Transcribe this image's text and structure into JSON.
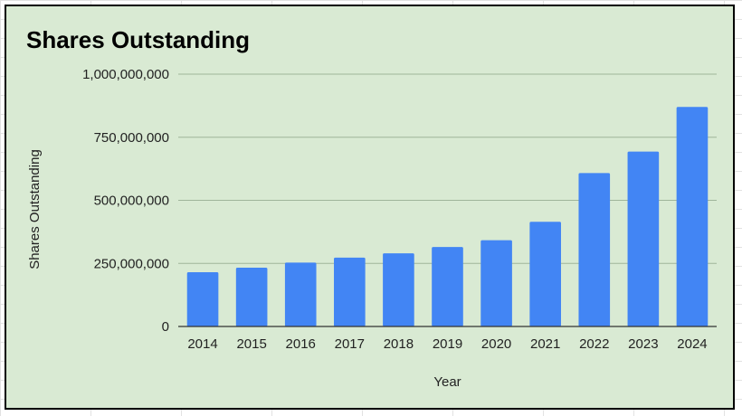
{
  "chart_data": {
    "type": "bar",
    "title": "Shares Outstanding",
    "xlabel": "Year",
    "ylabel": "Shares Outstanding",
    "categories": [
      "2014",
      "2015",
      "2016",
      "2017",
      "2018",
      "2019",
      "2020",
      "2021",
      "2022",
      "2023",
      "2024"
    ],
    "values": [
      215000000,
      233000000,
      253000000,
      273000000,
      290000000,
      315000000,
      342000000,
      415000000,
      608000000,
      693000000,
      870000000
    ],
    "ylim": [
      0,
      1000000000
    ],
    "yticks": [
      {
        "value": 0,
        "label": "0"
      },
      {
        "value": 250000000,
        "label": "250,000,000"
      },
      {
        "value": 500000000,
        "label": "500,000,000"
      },
      {
        "value": 750000000,
        "label": "750,000,000"
      },
      {
        "value": 1000000000,
        "label": "1,000,000,000"
      }
    ],
    "grid": true,
    "legend": "none",
    "colors": {
      "bar": "#4285f4",
      "background": "#d9ead3"
    }
  }
}
